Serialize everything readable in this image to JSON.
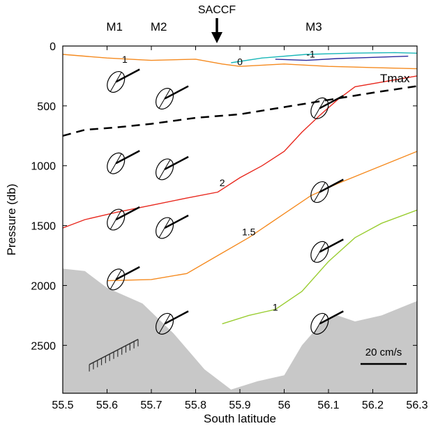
{
  "chart_data": {
    "type": "line",
    "title": "",
    "xlabel": "South latitude",
    "ylabel": "Pressure (db)",
    "xlim": [
      55.5,
      56.3
    ],
    "ylim": [
      2900,
      0
    ],
    "xticks": [
      55.5,
      55.6,
      55.7,
      55.8,
      55.9,
      56.0,
      56.1,
      56.2,
      56.3
    ],
    "xtick_labels": [
      "55.5",
      "55.6",
      "55.7",
      "55.8",
      "55.9",
      "56",
      "56.1",
      "56.2",
      "56.3"
    ],
    "yticks": [
      0,
      500,
      1000,
      1500,
      2000,
      2500
    ],
    "ytick_labels": [
      "0",
      "500",
      "1000",
      "1500",
      "2000",
      "2500"
    ],
    "moorings": [
      {
        "name": "M1",
        "lat": 55.62
      },
      {
        "name": "M2",
        "lat": 55.72
      },
      {
        "name": "M3",
        "lat": 56.07
      }
    ],
    "front": {
      "name": "SACCF",
      "lat": 55.85
    },
    "tmax_label": "Tmax",
    "tmax_line": [
      [
        55.5,
        750
      ],
      [
        55.55,
        700
      ],
      [
        55.62,
        680
      ],
      [
        55.7,
        650
      ],
      [
        55.8,
        600
      ],
      [
        55.9,
        570
      ],
      [
        56.0,
        510
      ],
      [
        56.1,
        450
      ],
      [
        56.2,
        390
      ],
      [
        56.3,
        335
      ]
    ],
    "isotherms": [
      {
        "label": "2",
        "color": "#e8281e",
        "label_at": [
          55.86,
          1170
        ],
        "points": [
          [
            55.5,
            1520
          ],
          [
            55.55,
            1450
          ],
          [
            55.62,
            1390
          ],
          [
            55.7,
            1330
          ],
          [
            55.78,
            1270
          ],
          [
            55.85,
            1220
          ],
          [
            55.9,
            1100
          ],
          [
            55.95,
            1000
          ],
          [
            56.0,
            880
          ],
          [
            56.04,
            720
          ],
          [
            56.08,
            580
          ],
          [
            56.12,
            450
          ],
          [
            56.16,
            340
          ],
          [
            56.3,
            250
          ]
        ]
      },
      {
        "label": "1.5",
        "color": "#f58a1f",
        "label_at": [
          55.92,
          1580
        ],
        "points": [
          [
            55.6,
            1960
          ],
          [
            55.7,
            1950
          ],
          [
            55.78,
            1900
          ],
          [
            55.85,
            1750
          ],
          [
            55.92,
            1600
          ],
          [
            56.0,
            1400
          ],
          [
            56.06,
            1250
          ],
          [
            56.12,
            1150
          ],
          [
            56.18,
            1060
          ],
          [
            56.3,
            880
          ]
        ]
      },
      {
        "label": "1",
        "color": "#9acd32",
        "label_at": [
          55.98,
          2210
        ],
        "points": [
          [
            55.86,
            2320
          ],
          [
            55.92,
            2250
          ],
          [
            55.98,
            2200
          ],
          [
            56.04,
            2050
          ],
          [
            56.1,
            1800
          ],
          [
            56.16,
            1600
          ],
          [
            56.22,
            1480
          ],
          [
            56.3,
            1370
          ]
        ]
      },
      {
        "label": "1",
        "color": "#f58a1f",
        "label_at": [
          55.64,
          140
        ],
        "points": [
          [
            55.5,
            70
          ],
          [
            55.6,
            100
          ],
          [
            55.7,
            120
          ],
          [
            55.8,
            110
          ],
          [
            55.86,
            150
          ],
          [
            55.9,
            170
          ],
          [
            56.0,
            150
          ],
          [
            56.1,
            170
          ],
          [
            56.2,
            180
          ],
          [
            56.3,
            190
          ]
        ]
      },
      {
        "label": "0",
        "color": "#19b7b8",
        "label_at": [
          55.9,
          160
        ],
        "points": [
          [
            55.88,
            140
          ],
          [
            55.95,
            100
          ],
          [
            56.05,
            70
          ],
          [
            56.15,
            60
          ],
          [
            56.25,
            55
          ],
          [
            56.3,
            60
          ]
        ]
      },
      {
        "label": "-1",
        "color": "#2a2a9e",
        "label_at": [
          56.06,
          95
        ],
        "points": [
          [
            55.98,
            110
          ],
          [
            56.05,
            120
          ],
          [
            56.12,
            105
          ],
          [
            56.2,
            95
          ],
          [
            56.28,
            85
          ]
        ]
      }
    ],
    "velocity_ellipses": [
      {
        "lat": 55.62,
        "p": 300
      },
      {
        "lat": 55.62,
        "p": 980
      },
      {
        "lat": 55.62,
        "p": 1450
      },
      {
        "lat": 55.62,
        "p": 1950
      },
      {
        "lat": 55.73,
        "p": 440
      },
      {
        "lat": 55.73,
        "p": 1030
      },
      {
        "lat": 55.73,
        "p": 1520
      },
      {
        "lat": 55.73,
        "p": 2320
      },
      {
        "lat": 56.08,
        "p": 520
      },
      {
        "lat": 56.08,
        "p": 1220
      },
      {
        "lat": 56.08,
        "p": 1720
      },
      {
        "lat": 56.08,
        "p": 2320
      }
    ],
    "bottom_profile": [
      [
        55.5,
        1860
      ],
      [
        55.55,
        1880
      ],
      [
        55.6,
        2020
      ],
      [
        55.68,
        2150
      ],
      [
        55.75,
        2400
      ],
      [
        55.82,
        2700
      ],
      [
        55.88,
        2870
      ],
      [
        55.94,
        2800
      ],
      [
        56.0,
        2750
      ],
      [
        56.04,
        2500
      ],
      [
        56.08,
        2330
      ],
      [
        56.12,
        2250
      ],
      [
        56.16,
        2300
      ],
      [
        56.22,
        2250
      ],
      [
        56.3,
        2130
      ]
    ],
    "scale_label": "20 cm/s"
  }
}
